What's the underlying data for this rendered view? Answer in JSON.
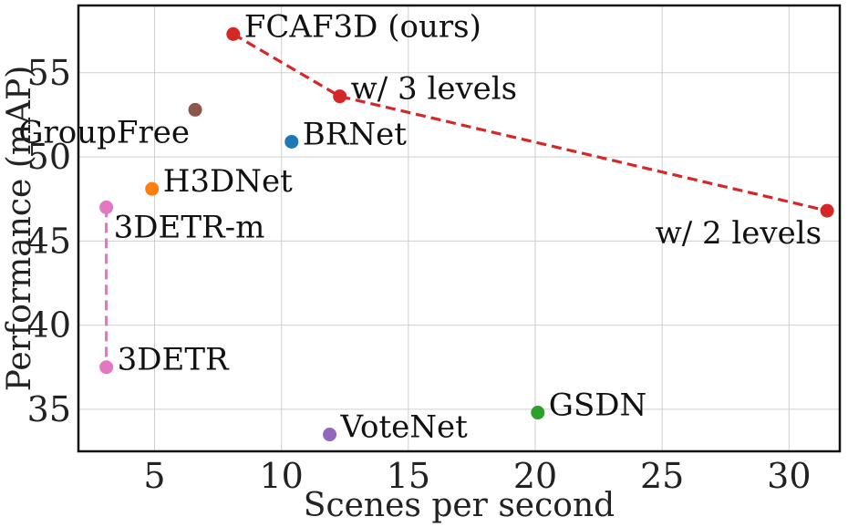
{
  "chart_data": {
    "type": "scatter",
    "title": "",
    "xlabel": "Scenes per second",
    "ylabel": "Performance (mAP)",
    "xlim": [
      2.0,
      32.0
    ],
    "ylim": [
      32.5,
      59.0
    ],
    "xticks": [
      5,
      10,
      15,
      20,
      25,
      30
    ],
    "yticks": [
      35,
      40,
      45,
      50,
      55
    ],
    "grid": true,
    "points": [
      {
        "label": "FCAF3D (ours)",
        "x": 8.1,
        "y": 57.3,
        "color": "#d62728",
        "label_pos": "right"
      },
      {
        "label": "w/ 3 levels",
        "x": 12.3,
        "y": 53.6,
        "color": "#d62728",
        "label_pos": "right"
      },
      {
        "label": "w/ 2 levels",
        "x": 31.5,
        "y": 46.8,
        "color": "#d62728",
        "label_pos": "below-left"
      },
      {
        "label": "GroupFree",
        "x": 6.6,
        "y": 52.8,
        "color": "#8c564b",
        "label_pos": "below-left"
      },
      {
        "label": "BRNet",
        "x": 10.4,
        "y": 50.9,
        "color": "#1f77b4",
        "label_pos": "right"
      },
      {
        "label": "H3DNet",
        "x": 4.9,
        "y": 48.1,
        "color": "#ff7f0e",
        "label_pos": "right"
      },
      {
        "label": "3DETR-m",
        "x": 3.1,
        "y": 47.0,
        "color": "#e377c2",
        "label_pos": "below-right"
      },
      {
        "label": "3DETR",
        "x": 3.1,
        "y": 37.5,
        "color": "#e377c2",
        "label_pos": "right"
      },
      {
        "label": "GSDN",
        "x": 20.1,
        "y": 34.8,
        "color": "#2ca02c",
        "label_pos": "right"
      },
      {
        "label": "VoteNet",
        "x": 11.9,
        "y": 33.5,
        "color": "#9467bd",
        "label_pos": "right"
      }
    ],
    "lines": [
      {
        "color": "#d62728",
        "style": "dashed",
        "points": [
          [
            8.1,
            57.3
          ],
          [
            12.3,
            53.6
          ],
          [
            31.5,
            46.8
          ]
        ]
      },
      {
        "color": "#e377c2",
        "style": "dashed",
        "points": [
          [
            3.1,
            47.0
          ],
          [
            3.1,
            37.5
          ]
        ]
      }
    ]
  }
}
